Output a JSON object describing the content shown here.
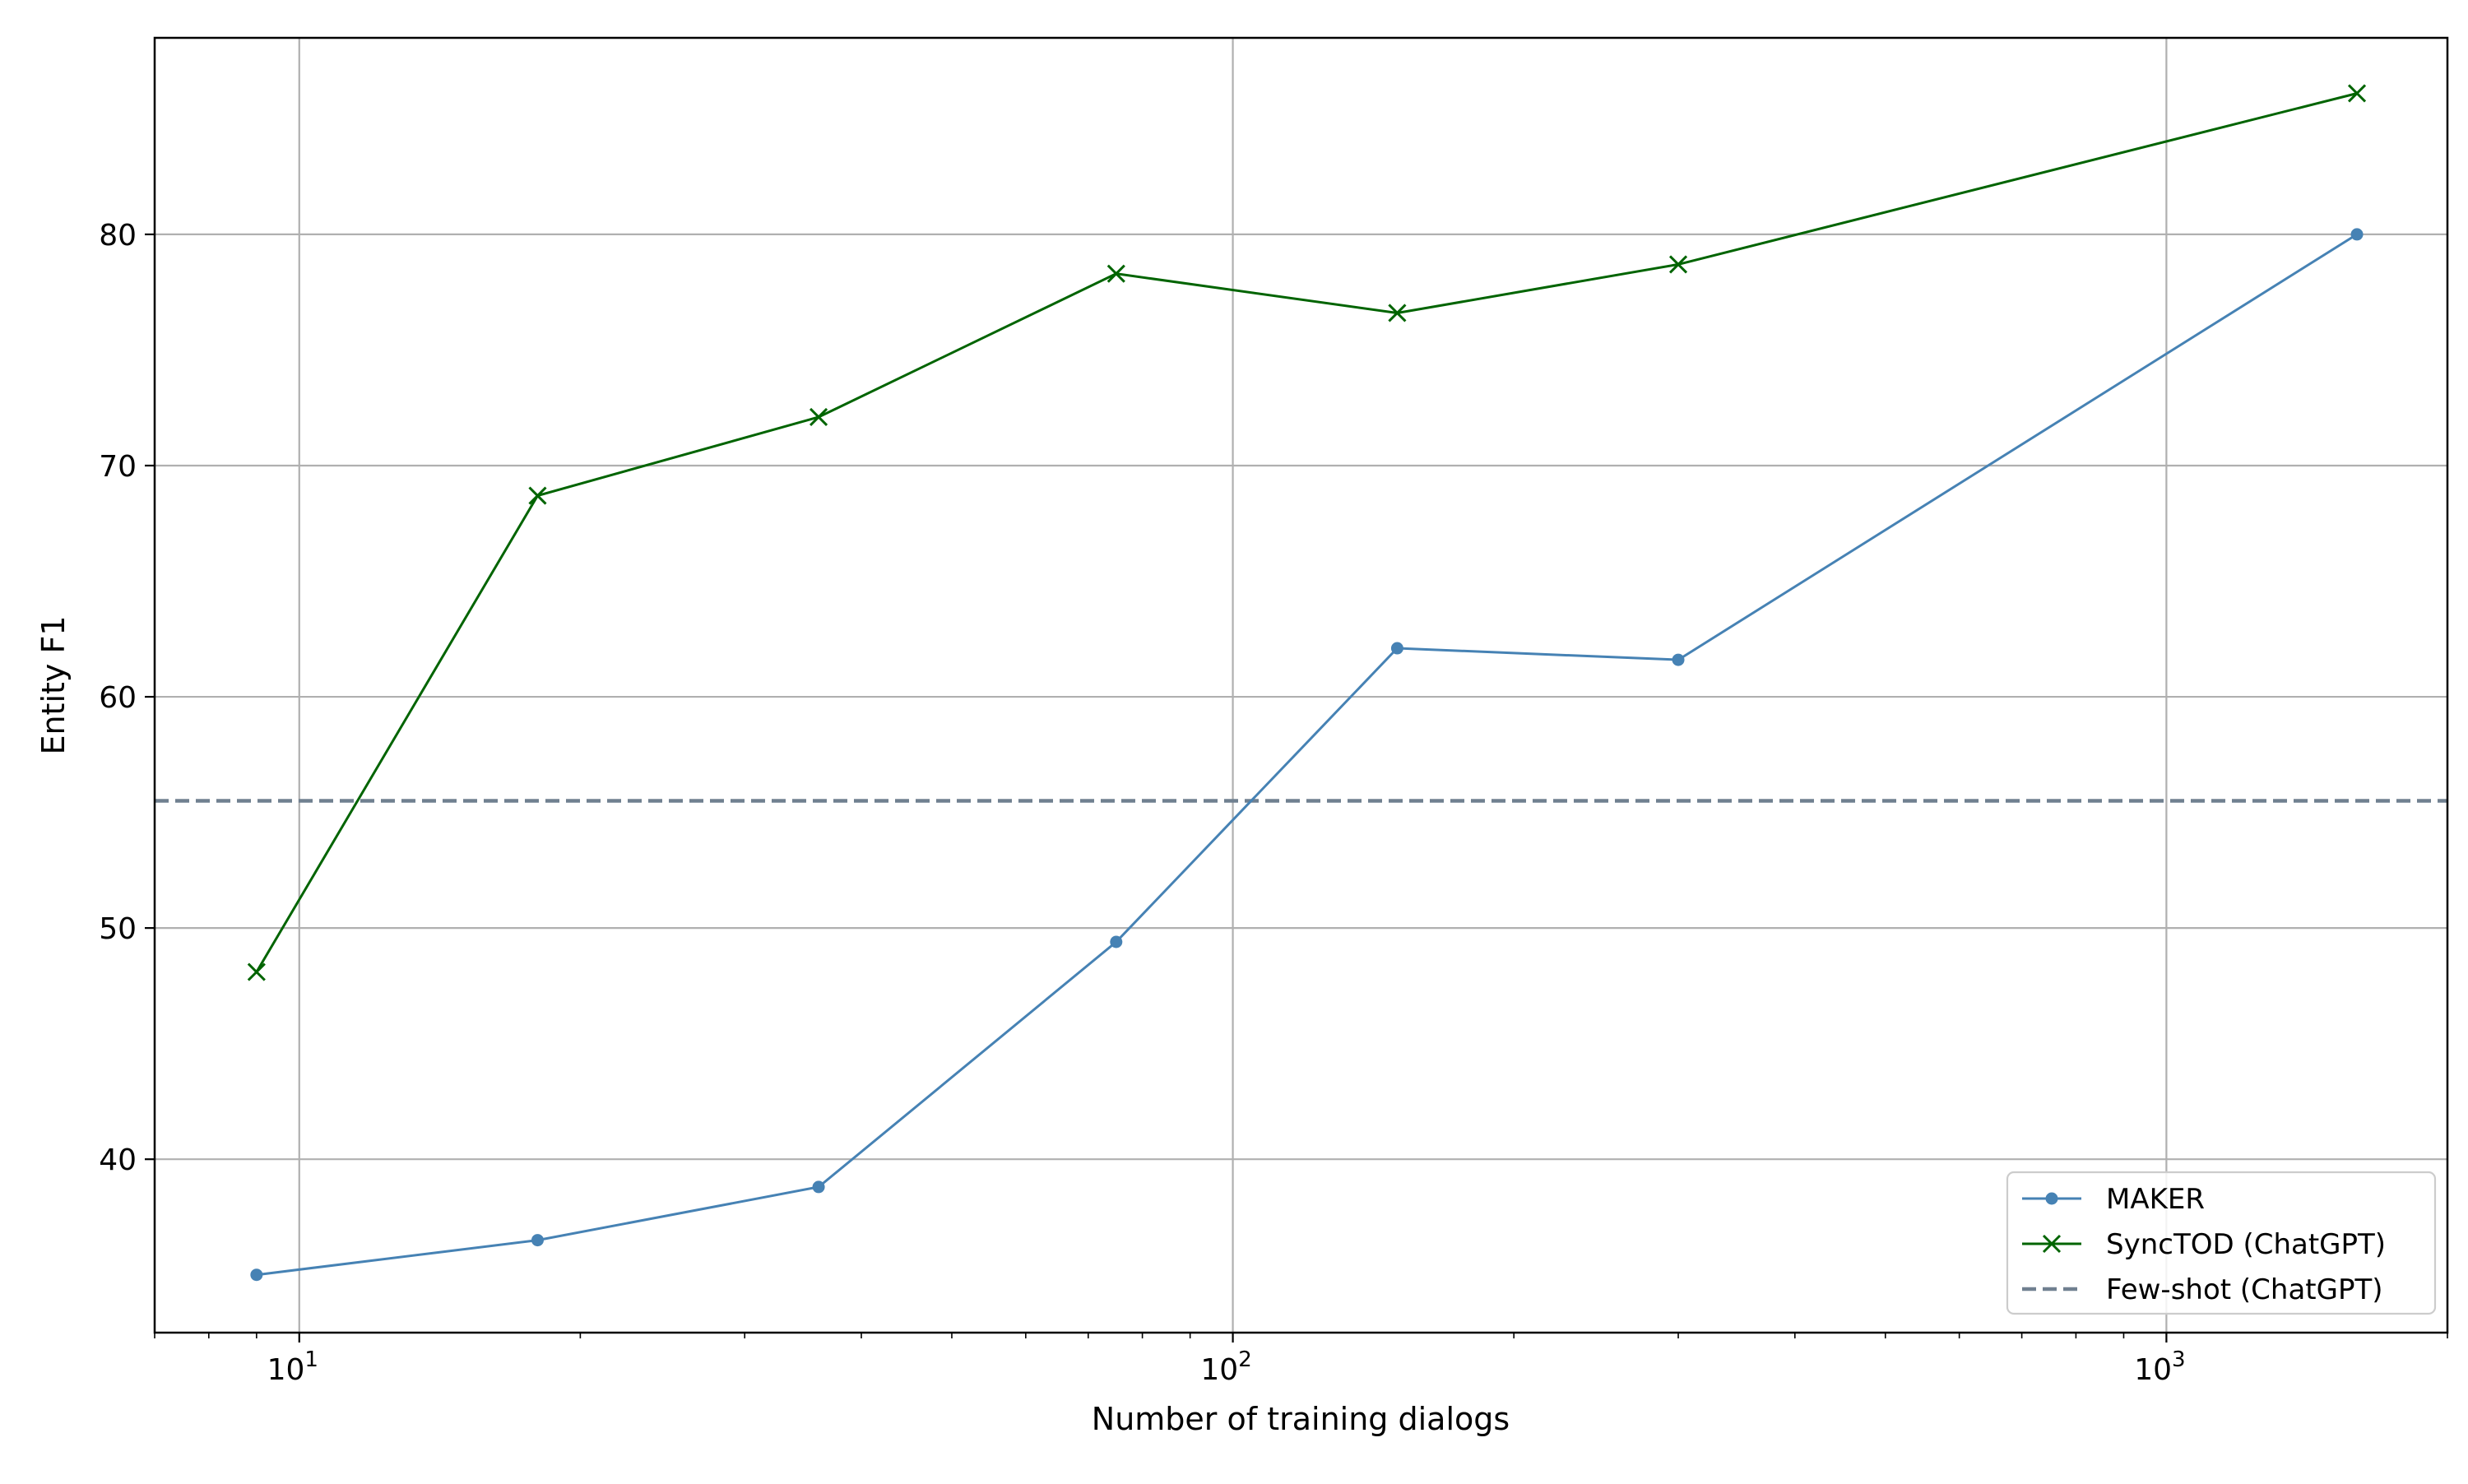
{
  "chart_data": {
    "type": "line",
    "xlabel": "Number of training dialogs",
    "ylabel": "Entity F1",
    "xscale": "log",
    "xlim": [
      7,
      2000
    ],
    "ylim": [
      32.5,
      88.5
    ],
    "grid": true,
    "legend_position": "bottom-right",
    "x_major_ticks": [
      {
        "value": 10,
        "label_base": "10",
        "label_exp": "1"
      },
      {
        "value": 100,
        "label_base": "10",
        "label_exp": "2"
      },
      {
        "value": 1000,
        "label_base": "10",
        "label_exp": "3"
      }
    ],
    "y_ticks": [
      40,
      50,
      60,
      70,
      80
    ],
    "series": [
      {
        "name": "MAKER",
        "color": "#4682b4",
        "marker": "dot",
        "x": [
          9,
          18,
          36,
          75,
          150,
          300,
          1600
        ],
        "y": [
          35.0,
          36.5,
          38.8,
          49.4,
          62.1,
          61.6,
          80.0
        ]
      },
      {
        "name": "SyncTOD (ChatGPT)",
        "color": "#006400",
        "marker": "x",
        "x": [
          9,
          18,
          36,
          75,
          150,
          300,
          1600
        ],
        "y": [
          48.1,
          68.7,
          72.1,
          78.3,
          76.6,
          78.7,
          86.1
        ]
      }
    ],
    "reference_lines": [
      {
        "name": "Few-shot (ChatGPT)",
        "color": "#708090",
        "style": "dashed",
        "y": 55.5
      }
    ]
  }
}
